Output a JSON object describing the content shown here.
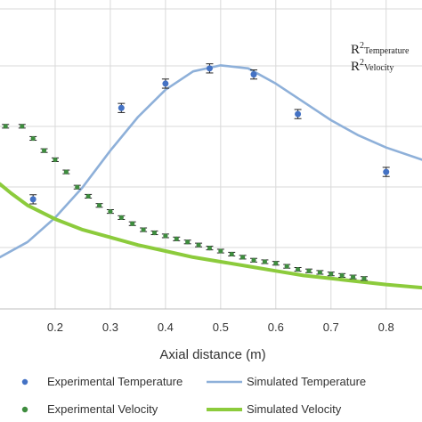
{
  "chart_data": {
    "type": "scatter",
    "xlabel": "Axial distance (m)",
    "x_ticks": [
      "0.2",
      "0.3",
      "0.4",
      "0.5",
      "0.6",
      "0.7",
      "0.8"
    ],
    "xlim": [
      0.1,
      0.865
    ],
    "ylim": [
      0,
      1
    ],
    "grid": true,
    "annotations": [
      {
        "base": "R",
        "sup": "2",
        "sub": "Temperature"
      },
      {
        "base": "R",
        "sup": "2",
        "sub": "Velocity"
      }
    ],
    "legend_position": "bottom",
    "series": [
      {
        "name": "Experimental Temperature",
        "kind": "points",
        "color": "#4472C4",
        "error": 0.015,
        "points": [
          [
            0.16,
            0.36
          ],
          [
            0.32,
            0.66
          ],
          [
            0.4,
            0.74
          ],
          [
            0.48,
            0.79
          ],
          [
            0.56,
            0.77
          ],
          [
            0.64,
            0.64
          ],
          [
            0.8,
            0.45
          ]
        ]
      },
      {
        "name": "Simulated Temperature",
        "kind": "line",
        "color": "#8EB0D9",
        "points": [
          [
            0.1,
            0.17
          ],
          [
            0.15,
            0.22
          ],
          [
            0.2,
            0.3
          ],
          [
            0.25,
            0.4
          ],
          [
            0.3,
            0.52
          ],
          [
            0.35,
            0.63
          ],
          [
            0.4,
            0.72
          ],
          [
            0.45,
            0.78
          ],
          [
            0.5,
            0.8
          ],
          [
            0.55,
            0.79
          ],
          [
            0.6,
            0.74
          ],
          [
            0.65,
            0.68
          ],
          [
            0.7,
            0.62
          ],
          [
            0.75,
            0.57
          ],
          [
            0.8,
            0.53
          ],
          [
            0.865,
            0.49
          ]
        ]
      },
      {
        "name": "Experimental Velocity",
        "kind": "points",
        "color": "#3E8C3E",
        "error": 0.006,
        "points": [
          [
            0.11,
            0.6
          ],
          [
            0.14,
            0.6
          ],
          [
            0.16,
            0.56
          ],
          [
            0.18,
            0.52
          ],
          [
            0.2,
            0.49
          ],
          [
            0.22,
            0.45
          ],
          [
            0.24,
            0.4
          ],
          [
            0.26,
            0.37
          ],
          [
            0.28,
            0.34
          ],
          [
            0.3,
            0.32
          ],
          [
            0.32,
            0.3
          ],
          [
            0.34,
            0.28
          ],
          [
            0.36,
            0.26
          ],
          [
            0.38,
            0.25
          ],
          [
            0.4,
            0.24
          ],
          [
            0.42,
            0.23
          ],
          [
            0.44,
            0.22
          ],
          [
            0.46,
            0.21
          ],
          [
            0.48,
            0.2
          ],
          [
            0.5,
            0.19
          ],
          [
            0.52,
            0.18
          ],
          [
            0.54,
            0.17
          ],
          [
            0.56,
            0.16
          ],
          [
            0.58,
            0.155
          ],
          [
            0.6,
            0.15
          ],
          [
            0.62,
            0.14
          ],
          [
            0.64,
            0.13
          ],
          [
            0.66,
            0.125
          ],
          [
            0.68,
            0.12
          ],
          [
            0.7,
            0.115
          ],
          [
            0.72,
            0.11
          ],
          [
            0.74,
            0.105
          ],
          [
            0.76,
            0.1
          ]
        ]
      },
      {
        "name": "Simulated Velocity",
        "kind": "line",
        "color": "#8CCB3C",
        "points": [
          [
            0.1,
            0.41
          ],
          [
            0.12,
            0.38
          ],
          [
            0.15,
            0.34
          ],
          [
            0.2,
            0.295
          ],
          [
            0.25,
            0.26
          ],
          [
            0.3,
            0.235
          ],
          [
            0.35,
            0.21
          ],
          [
            0.4,
            0.19
          ],
          [
            0.45,
            0.17
          ],
          [
            0.5,
            0.155
          ],
          [
            0.55,
            0.14
          ],
          [
            0.6,
            0.125
          ],
          [
            0.65,
            0.11
          ],
          [
            0.7,
            0.1
          ],
          [
            0.75,
            0.09
          ],
          [
            0.8,
            0.08
          ],
          [
            0.865,
            0.07
          ]
        ]
      }
    ]
  }
}
